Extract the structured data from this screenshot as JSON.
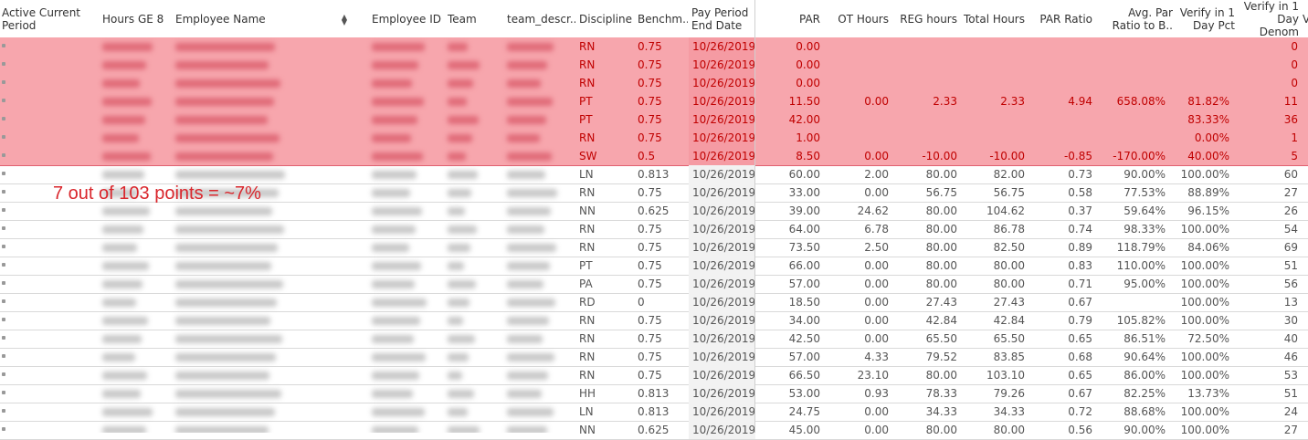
{
  "headers": {
    "active_current_period": "Active Current Period",
    "hours_ge8": "Hours GE 8",
    "employee_name": "Employee Name",
    "employee_id": "Employee ID",
    "team": "Team",
    "team_descr": "team_descr..",
    "discipline": "Discipline",
    "benchmark": "Benchm..",
    "pay_period_end": "Pay Period End Date",
    "par": "PAR",
    "ot_hours": "OT Hours",
    "reg_hours": "REG hours",
    "total_hours": "Total Hours",
    "par_ratio": "PAR Ratio",
    "avg_par_ratio": "Avg. Par Ratio to B..",
    "verify_pct": "Verify in 1 Day Pct",
    "verify_denom": "Verify in 1 Day Denom",
    "cut_off": "V"
  },
  "annotation": "7 out of 103 points =  ~7%",
  "rows": [
    {
      "discipline": "RN",
      "benchmark": "0.75",
      "date": "10/26/2019",
      "par": "0.00",
      "ot": "",
      "reg": "",
      "total": "",
      "ratio": "",
      "avg": "",
      "pct": "",
      "denom": "0",
      "highlight": true
    },
    {
      "discipline": "RN",
      "benchmark": "0.75",
      "date": "10/26/2019",
      "par": "0.00",
      "ot": "",
      "reg": "",
      "total": "",
      "ratio": "",
      "avg": "",
      "pct": "",
      "denom": "0",
      "highlight": true
    },
    {
      "discipline": "RN",
      "benchmark": "0.75",
      "date": "10/26/2019",
      "par": "0.00",
      "ot": "",
      "reg": "",
      "total": "",
      "ratio": "",
      "avg": "",
      "pct": "",
      "denom": "0",
      "highlight": true
    },
    {
      "discipline": "PT",
      "benchmark": "0.75",
      "date": "10/26/2019",
      "par": "11.50",
      "ot": "0.00",
      "reg": "2.33",
      "total": "2.33",
      "ratio": "4.94",
      "avg": "658.08%",
      "pct": "81.82%",
      "denom": "11",
      "highlight": true
    },
    {
      "discipline": "PT",
      "benchmark": "0.75",
      "date": "10/26/2019",
      "par": "42.00",
      "ot": "",
      "reg": "",
      "total": "",
      "ratio": "",
      "avg": "",
      "pct": "83.33%",
      "denom": "36",
      "highlight": true
    },
    {
      "discipline": "RN",
      "benchmark": "0.75",
      "date": "10/26/2019",
      "par": "1.00",
      "ot": "",
      "reg": "",
      "total": "",
      "ratio": "",
      "avg": "",
      "pct": "0.00%",
      "denom": "1",
      "highlight": true
    },
    {
      "discipline": "SW",
      "benchmark": "0.5",
      "date": "10/26/2019",
      "par": "8.50",
      "ot": "0.00",
      "reg": "-10.00",
      "total": "-10.00",
      "ratio": "-0.85",
      "avg": "-170.00%",
      "pct": "40.00%",
      "denom": "5",
      "highlight": true
    },
    {
      "discipline": "LN",
      "benchmark": "0.813",
      "date": "10/26/2019",
      "par": "60.00",
      "ot": "2.00",
      "reg": "80.00",
      "total": "82.00",
      "ratio": "0.73",
      "avg": "90.00%",
      "pct": "100.00%",
      "denom": "60",
      "highlight": false
    },
    {
      "discipline": "RN",
      "benchmark": "0.75",
      "date": "10/26/2019",
      "par": "33.00",
      "ot": "0.00",
      "reg": "56.75",
      "total": "56.75",
      "ratio": "0.58",
      "avg": "77.53%",
      "pct": "88.89%",
      "denom": "27",
      "highlight": false
    },
    {
      "discipline": "NN",
      "benchmark": "0.625",
      "date": "10/26/2019",
      "par": "39.00",
      "ot": "24.62",
      "reg": "80.00",
      "total": "104.62",
      "ratio": "0.37",
      "avg": "59.64%",
      "pct": "96.15%",
      "denom": "26",
      "highlight": false
    },
    {
      "discipline": "RN",
      "benchmark": "0.75",
      "date": "10/26/2019",
      "par": "64.00",
      "ot": "6.78",
      "reg": "80.00",
      "total": "86.78",
      "ratio": "0.74",
      "avg": "98.33%",
      "pct": "100.00%",
      "denom": "54",
      "highlight": false
    },
    {
      "discipline": "RN",
      "benchmark": "0.75",
      "date": "10/26/2019",
      "par": "73.50",
      "ot": "2.50",
      "reg": "80.00",
      "total": "82.50",
      "ratio": "0.89",
      "avg": "118.79%",
      "pct": "84.06%",
      "denom": "69",
      "highlight": false
    },
    {
      "discipline": "PT",
      "benchmark": "0.75",
      "date": "10/26/2019",
      "par": "66.00",
      "ot": "0.00",
      "reg": "80.00",
      "total": "80.00",
      "ratio": "0.83",
      "avg": "110.00%",
      "pct": "100.00%",
      "denom": "51",
      "highlight": false
    },
    {
      "discipline": "PA",
      "benchmark": "0.75",
      "date": "10/26/2019",
      "par": "57.00",
      "ot": "0.00",
      "reg": "80.00",
      "total": "80.00",
      "ratio": "0.71",
      "avg": "95.00%",
      "pct": "100.00%",
      "denom": "56",
      "highlight": false
    },
    {
      "discipline": "RD",
      "benchmark": "0",
      "date": "10/26/2019",
      "par": "18.50",
      "ot": "0.00",
      "reg": "27.43",
      "total": "27.43",
      "ratio": "0.67",
      "avg": "",
      "pct": "100.00%",
      "denom": "13",
      "highlight": false
    },
    {
      "discipline": "RN",
      "benchmark": "0.75",
      "date": "10/26/2019",
      "par": "34.00",
      "ot": "0.00",
      "reg": "42.84",
      "total": "42.84",
      "ratio": "0.79",
      "avg": "105.82%",
      "pct": "100.00%",
      "denom": "30",
      "highlight": false
    },
    {
      "discipline": "RN",
      "benchmark": "0.75",
      "date": "10/26/2019",
      "par": "42.50",
      "ot": "0.00",
      "reg": "65.50",
      "total": "65.50",
      "ratio": "0.65",
      "avg": "86.51%",
      "pct": "72.50%",
      "denom": "40",
      "highlight": false
    },
    {
      "discipline": "RN",
      "benchmark": "0.75",
      "date": "10/26/2019",
      "par": "57.00",
      "ot": "4.33",
      "reg": "79.52",
      "total": "83.85",
      "ratio": "0.68",
      "avg": "90.64%",
      "pct": "100.00%",
      "denom": "46",
      "highlight": false
    },
    {
      "discipline": "RN",
      "benchmark": "0.75",
      "date": "10/26/2019",
      "par": "66.50",
      "ot": "23.10",
      "reg": "80.00",
      "total": "103.10",
      "ratio": "0.65",
      "avg": "86.00%",
      "pct": "100.00%",
      "denom": "53",
      "highlight": false
    },
    {
      "discipline": "HH",
      "benchmark": "0.813",
      "date": "10/26/2019",
      "par": "53.00",
      "ot": "0.93",
      "reg": "78.33",
      "total": "79.26",
      "ratio": "0.67",
      "avg": "82.25%",
      "pct": "13.73%",
      "denom": "51",
      "highlight": false
    },
    {
      "discipline": "LN",
      "benchmark": "0.813",
      "date": "10/26/2019",
      "par": "24.75",
      "ot": "0.00",
      "reg": "34.33",
      "total": "34.33",
      "ratio": "0.72",
      "avg": "88.68%",
      "pct": "100.00%",
      "denom": "24",
      "highlight": false
    },
    {
      "discipline": "NN",
      "benchmark": "0.625",
      "date": "10/26/2019",
      "par": "45.00",
      "ot": "0.00",
      "reg": "80.00",
      "total": "80.00",
      "ratio": "0.56",
      "avg": "90.00%",
      "pct": "100.00%",
      "denom": "27",
      "highlight": false
    }
  ]
}
